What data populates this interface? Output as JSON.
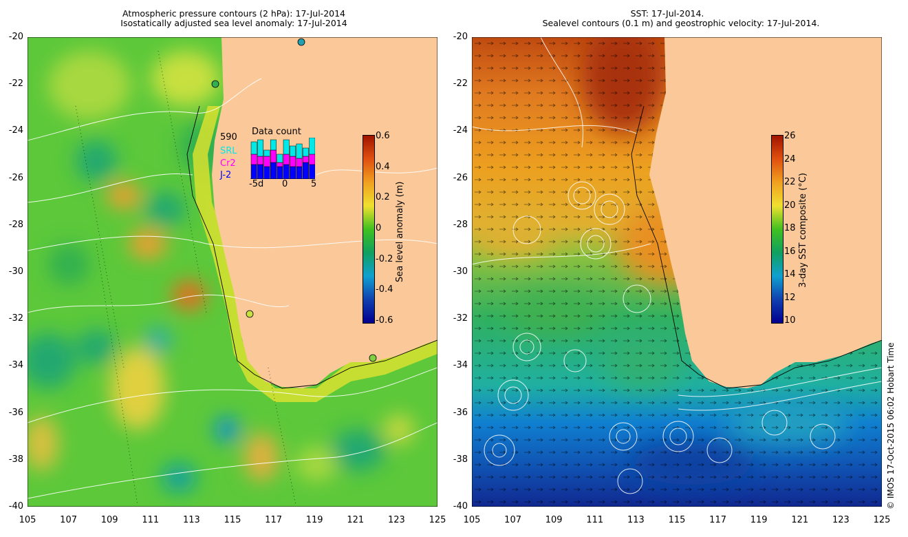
{
  "left_panel": {
    "title_line1": "Atmospheric pressure contours (2 hPa): 17-Jul-2014",
    "title_line2": "Isostatically adjusted sea level anomaly: 17-Jul-2014",
    "colorbar": {
      "label": "Sea level anomaly (m)",
      "ticks": [
        "0.6",
        "0.4",
        "0.2",
        "0",
        "-0.2",
        "-0.4",
        "-0.6"
      ],
      "colors": [
        "#a01400",
        "#e05010",
        "#f0a020",
        "#f0e030",
        "#40c020",
        "#10a060",
        "#10a0d0",
        "#1040b0",
        "#000090"
      ]
    },
    "inset": {
      "title": "Data count",
      "max_count": "590",
      "legend": [
        {
          "name": "SRL",
          "color": "#00e8e8"
        },
        {
          "name": "Cr2",
          "color": "#ff00ff"
        },
        {
          "name": "J-2",
          "color": "#0000ff"
        }
      ],
      "x_ticks": [
        "-5d",
        "0",
        "5"
      ],
      "bars": [
        {
          "j2": 0.35,
          "cr2": 0.25,
          "srl": 0.3
        },
        {
          "j2": 0.35,
          "cr2": 0.2,
          "srl": 0.4
        },
        {
          "j2": 0.3,
          "cr2": 0.25,
          "srl": 0.15
        },
        {
          "j2": 0.4,
          "cr2": 0.3,
          "srl": 0.25
        },
        {
          "j2": 0.3,
          "cr2": 0.1,
          "srl": 0.2
        },
        {
          "j2": 0.35,
          "cr2": 0.25,
          "srl": 0.35
        },
        {
          "j2": 0.3,
          "cr2": 0.25,
          "srl": 0.25
        },
        {
          "j2": 0.3,
          "cr2": 0.2,
          "srl": 0.35
        },
        {
          "j2": 0.4,
          "cr2": 0.15,
          "srl": 0.2
        },
        {
          "j2": 0.35,
          "cr2": 0.25,
          "srl": 0.4
        }
      ]
    }
  },
  "right_panel": {
    "title_line1": "SST: 17-Jul-2014.",
    "title_line2": "Sealevel contours (0.1 m) and geostrophic velocity: 17-Jul-2014.",
    "colorbar": {
      "label": "3-day SST composite (°C)",
      "ticks": [
        "26",
        "24",
        "22",
        "20",
        "18",
        "16",
        "14",
        "12",
        "10"
      ],
      "colors": [
        "#a01400",
        "#e05010",
        "#f0a020",
        "#f0e030",
        "#40c020",
        "#10a060",
        "#10a0d0",
        "#1040b0",
        "#000090"
      ]
    }
  },
  "axes": {
    "lat_ticks": [
      "-20",
      "-22",
      "-24",
      "-26",
      "-28",
      "-30",
      "-32",
      "-34",
      "-36",
      "-38",
      "-40"
    ],
    "lon_ticks": [
      "105",
      "107",
      "109",
      "111",
      "113",
      "115",
      "117",
      "119",
      "121",
      "123",
      "125"
    ]
  },
  "credit": "© IMOS 17-Oct-2015 06:02 Hobart Time",
  "colors": {
    "land": "#fbc999",
    "ocean_left_base": "#5cc83a"
  }
}
